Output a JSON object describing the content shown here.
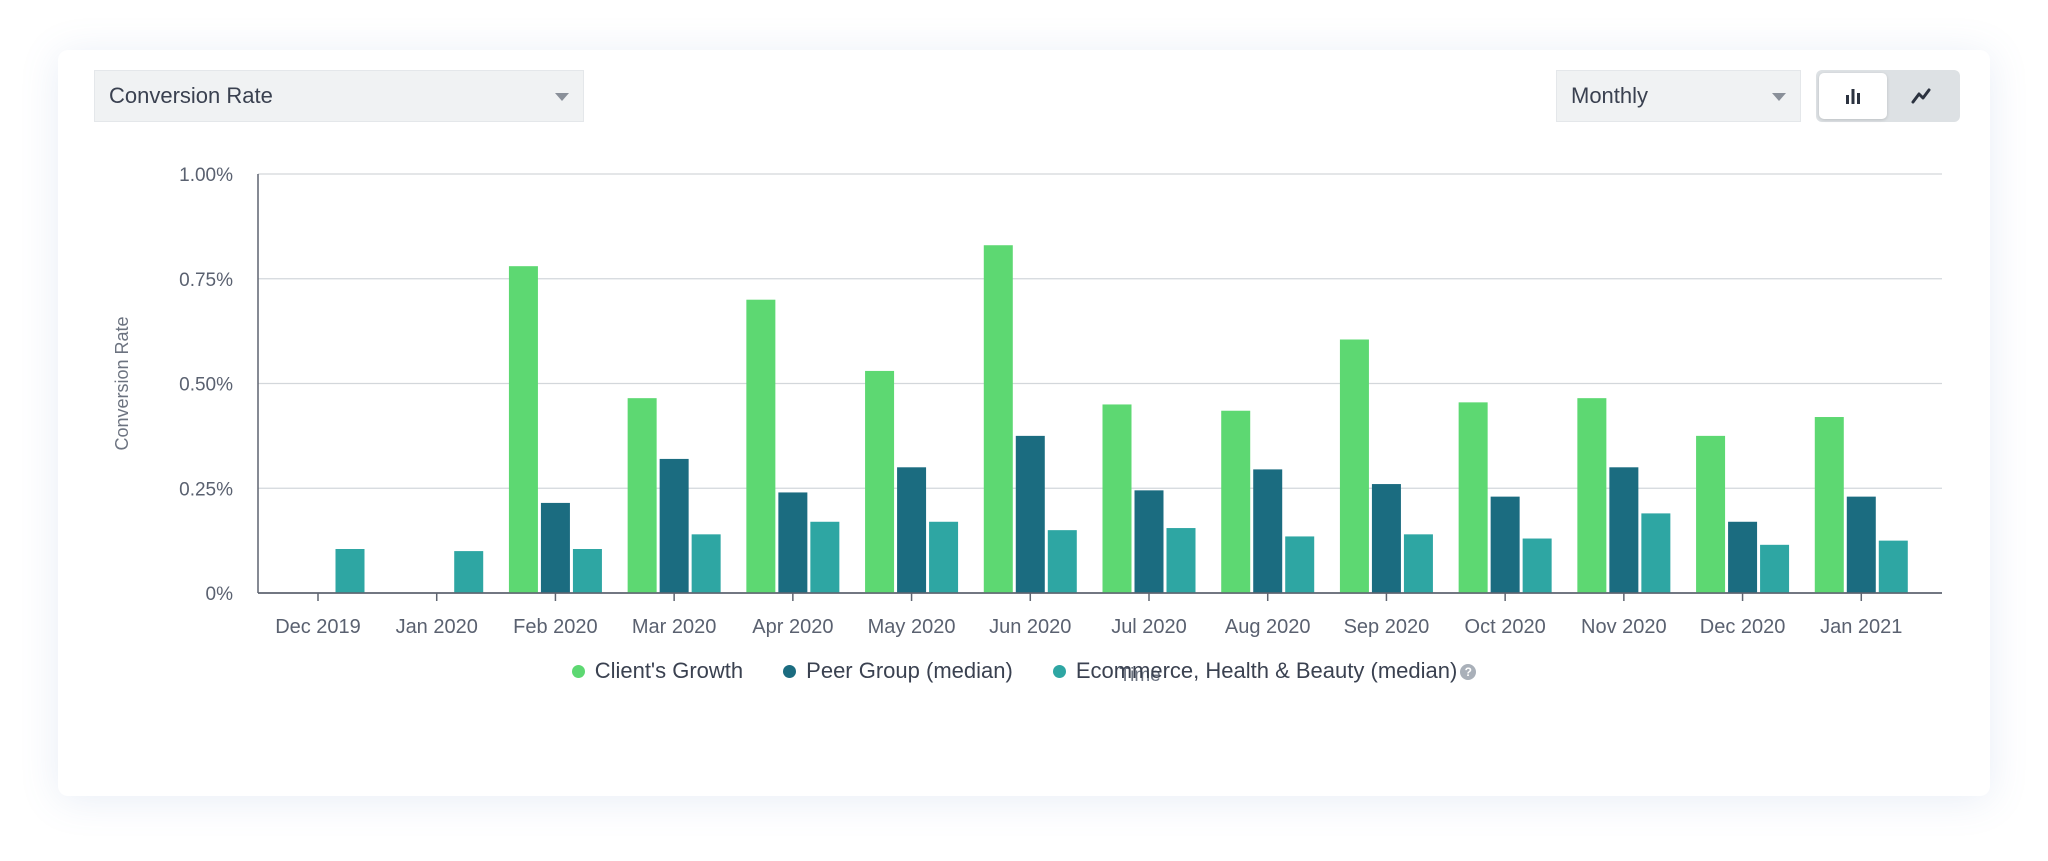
{
  "controls": {
    "metric_select": "Conversion Rate",
    "period_select": "Monthly",
    "view_toggle": [
      "bar-chart-icon",
      "line-chart-icon"
    ],
    "active_view": "bar"
  },
  "legend": {
    "items": [
      {
        "label": "Client's Growth",
        "color": "#5dd872"
      },
      {
        "label": "Peer Group (median)",
        "color": "#1b6c80"
      },
      {
        "label": "Ecommerce, Health & Beauty (median)",
        "color": "#2ea6a3"
      }
    ],
    "help_icon": "question-circle-icon"
  },
  "chart_data": {
    "type": "bar",
    "xlabel": "Time",
    "ylabel": "Conversion Rate",
    "ylim": [
      0,
      1.0
    ],
    "yticks": [
      "0%",
      "0.25%",
      "0.50%",
      "0.75%",
      "1.00%"
    ],
    "ytick_values": [
      0,
      0.25,
      0.5,
      0.75,
      1.0
    ],
    "grid": true,
    "legend_position": "bottom-center",
    "categories": [
      "Dec 2019",
      "Jan 2020",
      "Feb 2020",
      "Mar 2020",
      "Apr 2020",
      "May 2020",
      "Jun 2020",
      "Jul 2020",
      "Aug 2020",
      "Sep 2020",
      "Oct 2020",
      "Nov 2020",
      "Dec 2020",
      "Jan 2021"
    ],
    "series": [
      {
        "name": "Client's Growth",
        "color": "#5dd872",
        "values": [
          null,
          null,
          0.78,
          0.465,
          0.7,
          0.53,
          0.83,
          0.45,
          0.435,
          0.605,
          0.455,
          0.465,
          0.375,
          0.42
        ]
      },
      {
        "name": "Peer Group (median)",
        "color": "#1b6c80",
        "values": [
          null,
          null,
          0.215,
          0.32,
          0.24,
          0.3,
          0.375,
          0.245,
          0.295,
          0.26,
          0.23,
          0.3,
          0.17,
          0.23
        ]
      },
      {
        "name": "Ecommerce, Health & Beauty (median)",
        "color": "#2ea6a3",
        "values": [
          0.105,
          0.1,
          0.105,
          0.14,
          0.17,
          0.17,
          0.15,
          0.155,
          0.135,
          0.14,
          0.13,
          0.19,
          0.115,
          0.125
        ]
      }
    ]
  }
}
